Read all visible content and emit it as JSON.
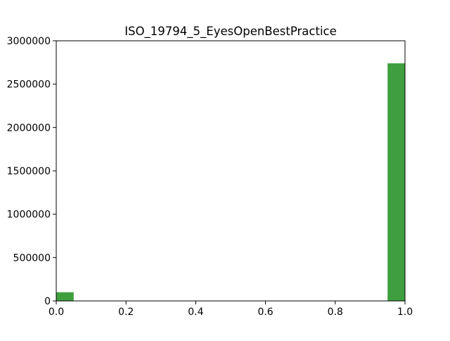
{
  "chart_data": {
    "type": "bar",
    "title": "ISO_19794_5_EyesOpenBestPractice",
    "xlabel": "",
    "ylabel": "",
    "xlim": [
      0.0,
      1.0
    ],
    "ylim": [
      0,
      3000000
    ],
    "x_ticks": [
      "0.0",
      "0.2",
      "0.4",
      "0.6",
      "0.8",
      "1.0"
    ],
    "x_tick_values": [
      0.0,
      0.2,
      0.4,
      0.6,
      0.8,
      1.0
    ],
    "y_ticks": [
      "0",
      "500000",
      "1000000",
      "1500000",
      "2000000",
      "2500000",
      "3000000"
    ],
    "y_tick_values": [
      0,
      500000,
      1000000,
      1500000,
      2000000,
      2500000,
      3000000
    ],
    "bins": [
      {
        "start": 0.0,
        "end": 0.05,
        "count": 100000
      },
      {
        "start": 0.05,
        "end": 0.1,
        "count": 0
      },
      {
        "start": 0.1,
        "end": 0.15,
        "count": 0
      },
      {
        "start": 0.15,
        "end": 0.2,
        "count": 0
      },
      {
        "start": 0.2,
        "end": 0.25,
        "count": 0
      },
      {
        "start": 0.25,
        "end": 0.3,
        "count": 0
      },
      {
        "start": 0.3,
        "end": 0.35,
        "count": 0
      },
      {
        "start": 0.35,
        "end": 0.4,
        "count": 0
      },
      {
        "start": 0.4,
        "end": 0.45,
        "count": 0
      },
      {
        "start": 0.45,
        "end": 0.5,
        "count": 0
      },
      {
        "start": 0.5,
        "end": 0.55,
        "count": 0
      },
      {
        "start": 0.55,
        "end": 0.6,
        "count": 0
      },
      {
        "start": 0.6,
        "end": 0.65,
        "count": 0
      },
      {
        "start": 0.65,
        "end": 0.7,
        "count": 0
      },
      {
        "start": 0.7,
        "end": 0.75,
        "count": 0
      },
      {
        "start": 0.75,
        "end": 0.8,
        "count": 0
      },
      {
        "start": 0.8,
        "end": 0.85,
        "count": 0
      },
      {
        "start": 0.85,
        "end": 0.9,
        "count": 0
      },
      {
        "start": 0.9,
        "end": 0.95,
        "count": 0
      },
      {
        "start": 0.95,
        "end": 1.0,
        "count": 2740000
      }
    ],
    "bar_color": "#3f9f3f",
    "grid": false,
    "legend": "none"
  }
}
